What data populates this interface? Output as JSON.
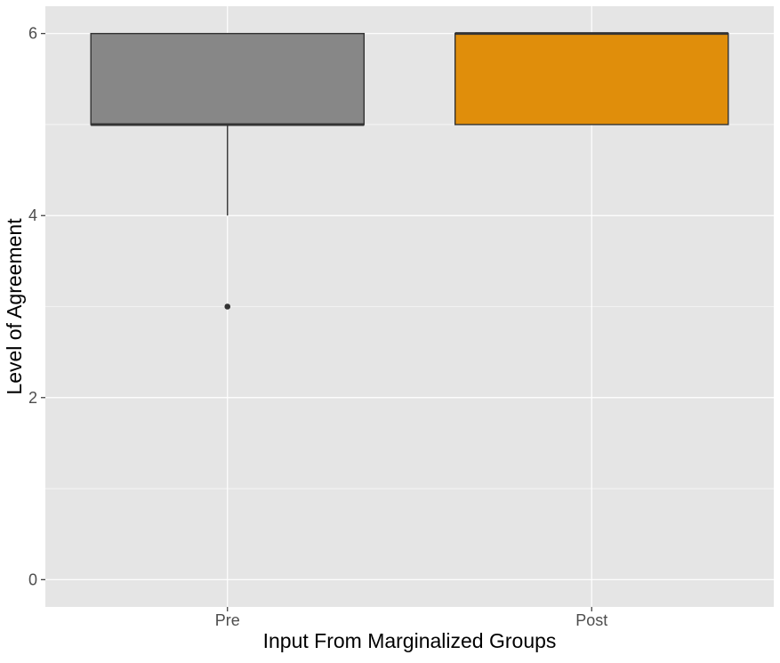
{
  "chart_data": {
    "type": "boxplot",
    "title": "",
    "xlabel": "Input From Marginalized Groups",
    "ylabel": "Level of Agreement",
    "categories": [
      "Pre",
      "Post"
    ],
    "ylim": [
      -0.3,
      6.3
    ],
    "yticks": [
      0,
      2,
      4,
      6
    ],
    "grid": true,
    "legend": "none",
    "boxes": [
      {
        "category": "Pre",
        "whisker_low": 4,
        "q1": 5,
        "median": 5,
        "q3": 6,
        "whisker_high": 6,
        "outliers": [
          3
        ],
        "color": "#878787"
      },
      {
        "category": "Post",
        "whisker_low": 5,
        "q1": 5,
        "median": 6,
        "q3": 6,
        "whisker_high": 6,
        "outliers": [],
        "color": "#e08e0b"
      }
    ]
  },
  "colors": {
    "panel_background": "#e5e5e5",
    "gridline": "#ffffff",
    "box_outline": "#333333",
    "tick_mark": "#333333"
  }
}
